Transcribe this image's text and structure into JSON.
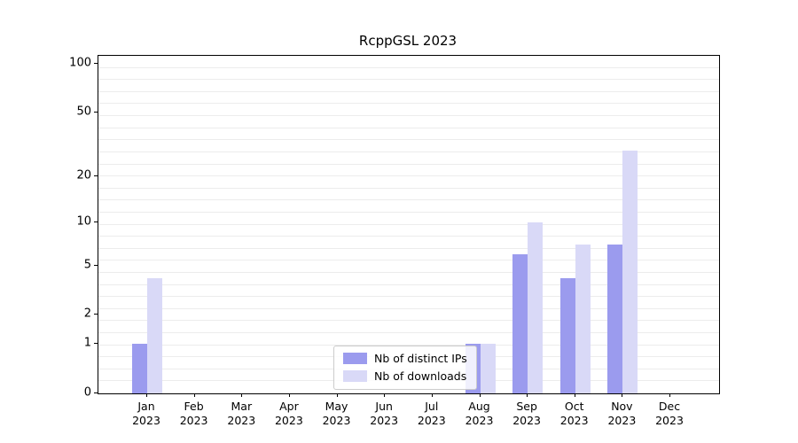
{
  "title": "RcppGSL 2023",
  "chart_data": {
    "type": "bar",
    "title": "RcppGSL 2023",
    "y_scale": "log1p",
    "ylim": [
      0,
      100
    ],
    "y_ticks": [
      0,
      1,
      2,
      5,
      10,
      20,
      50,
      100
    ],
    "grid": "horizontal",
    "legend_position": "lower center",
    "categories": [
      "Jan 2023",
      "Feb 2023",
      "Mar 2023",
      "Apr 2023",
      "May 2023",
      "Jun 2023",
      "Jul 2023",
      "Aug 2023",
      "Sep 2023",
      "Oct 2023",
      "Nov 2023",
      "Dec 2023"
    ],
    "series": [
      {
        "name": "Nb of distinct IPs",
        "color": "#9b9bee",
        "values": [
          1,
          0,
          0,
          0,
          0,
          0,
          0,
          1,
          6,
          4,
          7,
          0
        ]
      },
      {
        "name": "Nb of downloads",
        "color": "#d9d9f7",
        "values": [
          4,
          0,
          0,
          0,
          0,
          0,
          0,
          1,
          10,
          7,
          29,
          0
        ]
      }
    ]
  }
}
